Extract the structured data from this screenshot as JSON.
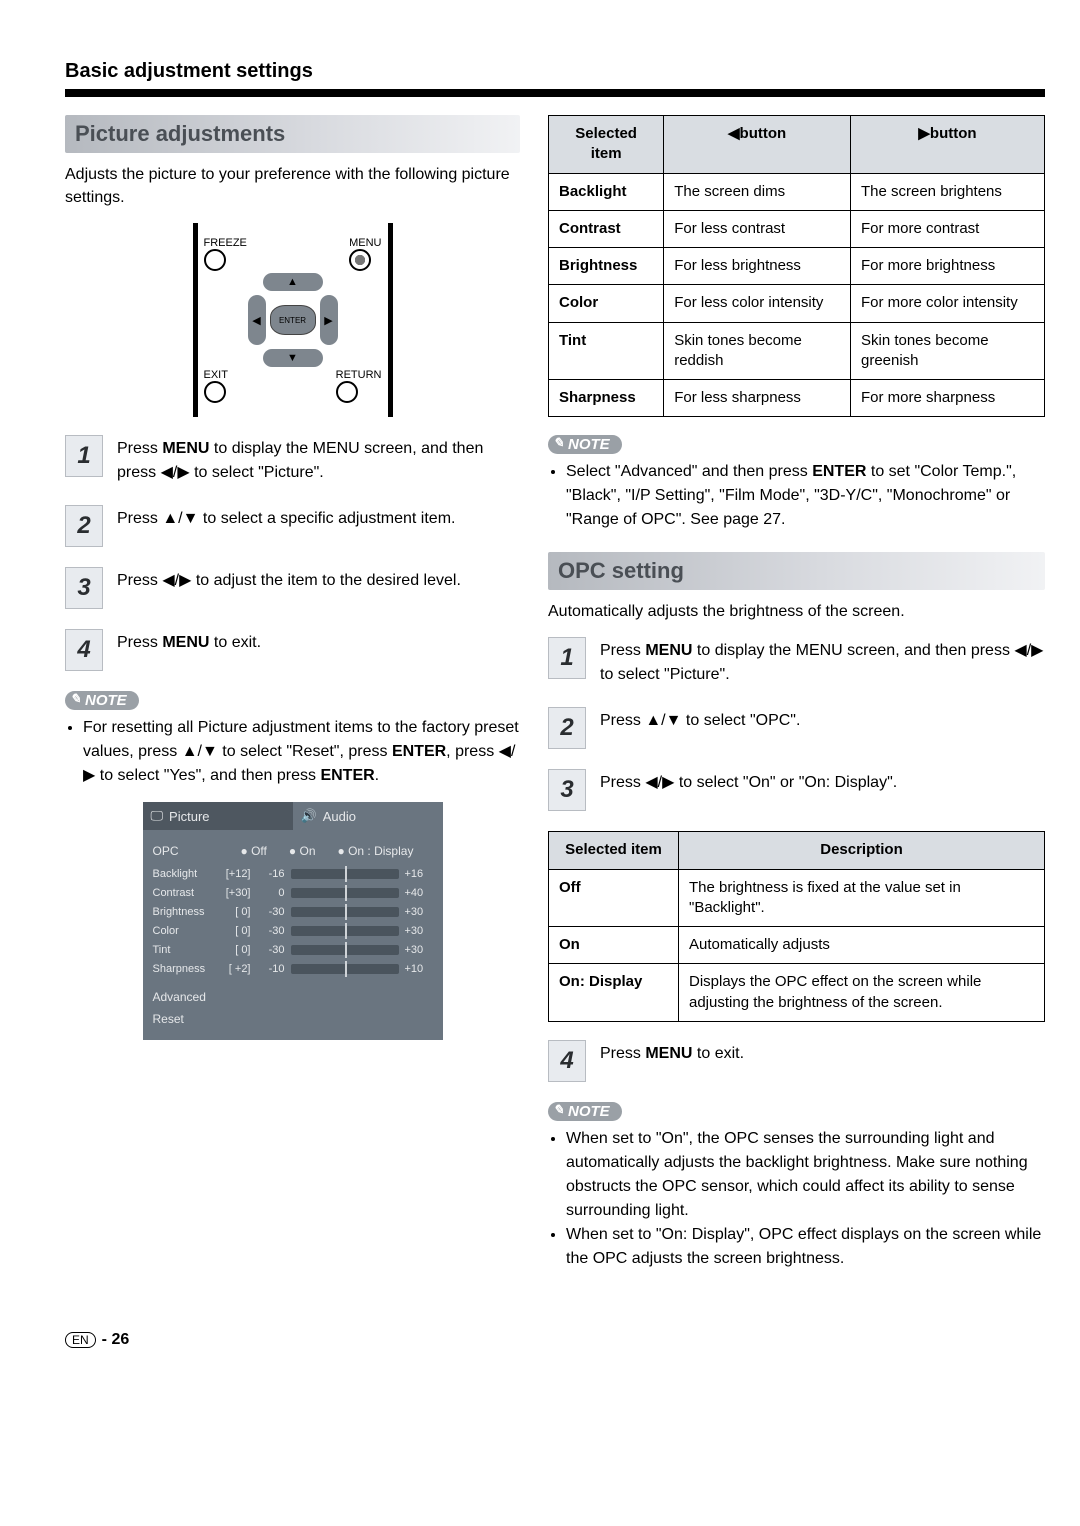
{
  "page": {
    "title": "Basic adjustment settings",
    "footer_page": "- 26",
    "footer_lang": "EN"
  },
  "left": {
    "heading": "Picture adjustments",
    "intro": "Adjusts the picture to your preference with the following picture settings.",
    "remote": {
      "freeze": "FREEZE",
      "menu": "MENU",
      "enter": "ENTER",
      "exit": "EXIT",
      "return": "RETURN"
    },
    "steps": [
      {
        "n": "1",
        "html": "Press <b>MENU</b> to display the MENU screen, and then press <span class='sym'>◀/▶</span> to select \"Picture\"."
      },
      {
        "n": "2",
        "html": "Press <span class='sym'>▲/▼</span> to select a specific adjustment item."
      },
      {
        "n": "3",
        "html": "Press <span class='sym'>◀/▶</span> to adjust the item to the desired level."
      },
      {
        "n": "4",
        "html": "Press <b>MENU</b> to exit."
      }
    ],
    "note_label": "NOTE",
    "note_html": "For resetting all Picture adjustment items to the factory preset values, press <span class='sym'>▲/▼</span> to select \"Reset\", press <b>ENTER</b>, press <span class='sym'>◀/▶</span> to select \"Yes\", and then press <b>ENTER</b>.",
    "menu": {
      "tab_picture": "Picture",
      "tab_audio": "Audio",
      "opc_label": "OPC",
      "opc_opts": [
        "Off",
        "On",
        "On : Display"
      ],
      "sliders": [
        {
          "lbl": "Backlight",
          "cur": "[+12]",
          "min": "-16",
          "max": "+16"
        },
        {
          "lbl": "Contrast",
          "cur": "[+30]",
          "min": "0",
          "max": "+40"
        },
        {
          "lbl": "Brightness",
          "cur": "[  0]",
          "min": "-30",
          "max": "+30"
        },
        {
          "lbl": "Color",
          "cur": "[  0]",
          "min": "-30",
          "max": "+30"
        },
        {
          "lbl": "Tint",
          "cur": "[  0]",
          "min": "-30",
          "max": "+30"
        },
        {
          "lbl": "Sharpness",
          "cur": "[ +2]",
          "min": "-10",
          "max": "+10"
        }
      ],
      "advanced": "Advanced",
      "reset": "Reset"
    }
  },
  "right": {
    "tbl1": {
      "h1": "Selected item",
      "h2": "◀button",
      "h3": "▶button",
      "rows": [
        [
          "Backlight",
          "The screen dims",
          "The screen brightens"
        ],
        [
          "Contrast",
          "For less contrast",
          "For more contrast"
        ],
        [
          "Brightness",
          "For less brightness",
          "For more brightness"
        ],
        [
          "Color",
          "For less color intensity",
          "For more color intensity"
        ],
        [
          "Tint",
          "Skin tones become reddish",
          "Skin tones become greenish"
        ],
        [
          "Sharpness",
          "For less sharpness",
          "For more sharpness"
        ]
      ]
    },
    "note1_label": "NOTE",
    "note1_html": "Select \"Advanced\" and then press <b>ENTER</b> to set \"Color Temp.\", \"Black\", \"I/P Setting\", \"Film Mode\", \"3D-Y/C\", \"Monochrome\" or \"Range of OPC\". See page 27.",
    "opc_heading": "OPC setting",
    "opc_intro": "Automatically adjusts the brightness of the screen.",
    "opc_steps": [
      {
        "n": "1",
        "html": "Press <b>MENU</b> to display the MENU screen, and then press <span class='sym'>◀/▶</span> to select \"Picture\"."
      },
      {
        "n": "2",
        "html": "Press <span class='sym'>▲/▼</span> to select \"OPC\"."
      },
      {
        "n": "3",
        "html": "Press <span class='sym'>◀/▶</span> to select \"On\" or \"On: Display\"."
      }
    ],
    "tbl2": {
      "h1": "Selected item",
      "h2": "Description",
      "rows": [
        [
          "Off",
          "The brightness is fixed at the value set in \"Backlight\"."
        ],
        [
          "On",
          "Automatically adjusts"
        ],
        [
          "On: Display",
          "Displays the OPC effect on the screen while adjusting the brightness of the screen."
        ]
      ]
    },
    "opc_step4": {
      "n": "4",
      "html": "Press <b>MENU</b> to exit."
    },
    "note2_label": "NOTE",
    "note2_items": [
      "When set to \"On\", the OPC senses the surrounding light and automatically adjusts the backlight brightness. Make sure nothing obstructs the OPC sensor, which could affect its ability to sense surrounding light.",
      "When set to \"On: Display\", OPC effect displays on the screen while the OPC adjusts the screen brightness."
    ]
  },
  "colors": {
    "section_head_bg": "#c5c9ce",
    "menu_bg": "#6a7580",
    "table_header_bg": "#d9dde2"
  }
}
